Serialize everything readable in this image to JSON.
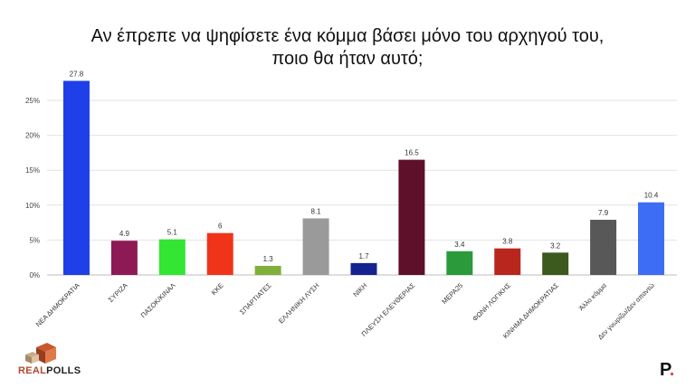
{
  "header": {
    "title_line1": "Αν έπρεπε να ψηφίσετε ένα κόμμα βάσει μόνο του αρχηγού του,",
    "title_line2": "ποιο θα ήταν αυτό;"
  },
  "branding": {
    "logo_text_real": "REAL",
    "logo_text_polls": "POLLS",
    "publisher_mark": "P",
    "publisher_dot": "."
  },
  "chart_data": {
    "type": "bar",
    "title": "Αν έπρεπε να ψηφίσετε ένα κόμμα βάσει μόνο του αρχηγού του, ποιο θα ήταν αυτό;",
    "categories": [
      "ΝΕΑ ΔΗΜΟΚΡΑΤΙΑ",
      "ΣΥΡΙΖΑ",
      "ΠΑΣΟΚ/ΚΙΝΑΛ",
      "ΚΚΕ",
      "ΣΠΑΡΤΙΑΤΕΣ",
      "ΕΛΛΗΝΙΚΗ ΛΥΣΗ",
      "ΝΙΚΗ",
      "ΠΛΕΥΣΗ ΕΛΕΥΘΕΡΙΑΣ",
      "ΜΕΡΑ25",
      "ΦΩΝΗ ΛΟΓΙΚΗΣ",
      "ΚΙΝΗΜΑ ΔΗΜΟΚΡΑΤΙΑΣ",
      "Άλλο κόμμα",
      "Δεν γνωρίζω/Δεν απαντώ"
    ],
    "values": [
      27.8,
      4.9,
      5.1,
      6,
      1.3,
      8.1,
      1.7,
      16.5,
      3.4,
      3.8,
      3.2,
      7.9,
      10.4
    ],
    "value_labels": [
      "27.8",
      "4.9",
      "5.1",
      "6",
      "1.3",
      "8.1",
      "1.7",
      "16.5",
      "3.4",
      "3.8",
      "3.2",
      "7.9",
      "10.4"
    ],
    "colors": [
      "#1f3fe8",
      "#8e1a55",
      "#33e633",
      "#f0341a",
      "#7fb03a",
      "#9a9a9a",
      "#16238f",
      "#5e0f2a",
      "#2a9a3a",
      "#b8261e",
      "#3d5a1e",
      "#585858",
      "#3d6cf5"
    ],
    "yticks": [
      0,
      5,
      10,
      15,
      20,
      25
    ],
    "ytick_labels": [
      "0%",
      "5%",
      "10%",
      "15%",
      "20%",
      "25%"
    ],
    "ylim": [
      0,
      28.5
    ],
    "grid": true,
    "xlabel": "",
    "ylabel": ""
  }
}
